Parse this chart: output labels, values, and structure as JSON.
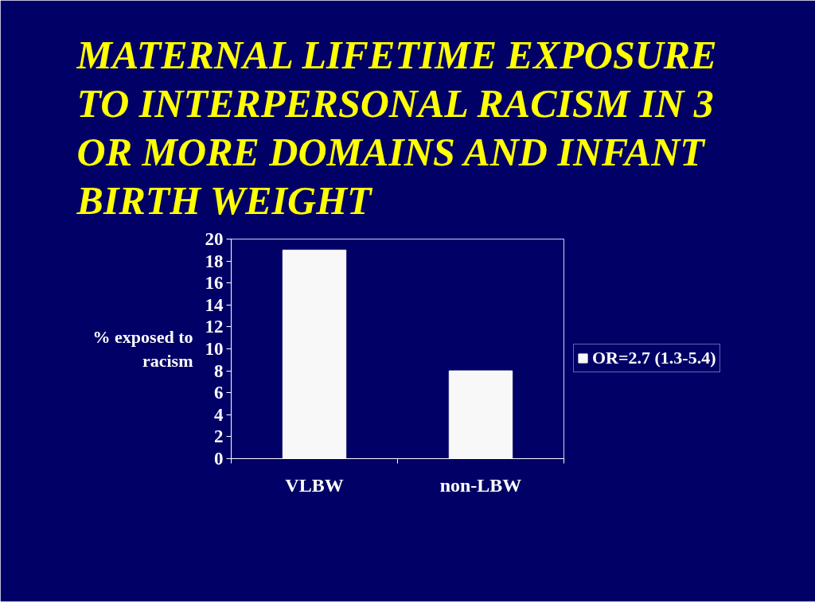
{
  "chart_data": {
    "type": "bar",
    "title": "MATERNAL LIFETIME EXPOSURE TO INTERPERSONAL RACISM IN 3 OR MORE DOMAINS AND INFANT BIRTH WEIGHT",
    "ylabel": "% exposed to racism",
    "categories": [
      "VLBW",
      "non-LBW"
    ],
    "series": [
      {
        "name": "OR=2.7 (1.3-5.4)",
        "color": "#f8f8f8",
        "values": [
          19,
          8
        ]
      }
    ],
    "ylim": [
      0,
      20
    ],
    "yticks": [
      0,
      2,
      4,
      6,
      8,
      10,
      12,
      14,
      16,
      18,
      20
    ],
    "grid": false,
    "legend": "right"
  }
}
